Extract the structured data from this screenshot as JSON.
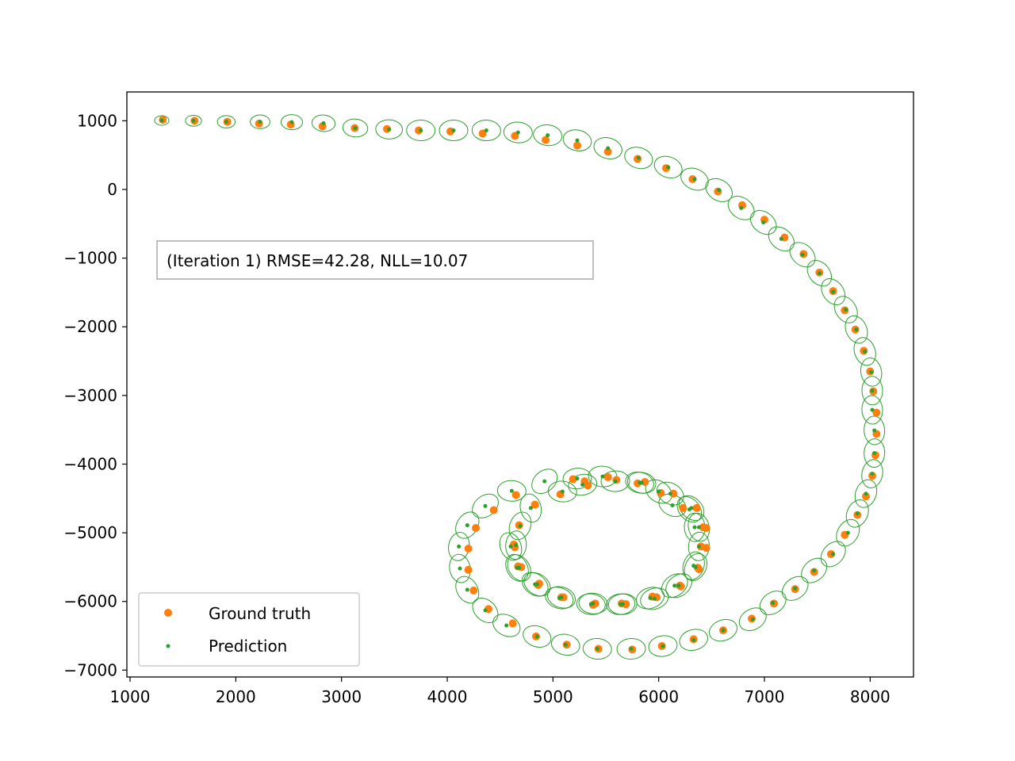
{
  "colors": {
    "ground_truth": "#ff7f0e",
    "prediction": "#2ca02c",
    "ellipse": "#2ca02c",
    "axes": "#000000",
    "legend_border": "#cccccc"
  },
  "chart_data": {
    "type": "scatter",
    "title": "",
    "xlabel": "",
    "ylabel": "",
    "xlim": [
      970,
      8410
    ],
    "ylim": [
      -7100,
      1420
    ],
    "x_ticks": [
      1000,
      2000,
      3000,
      4000,
      5000,
      6000,
      7000,
      8000
    ],
    "y_ticks": [
      1000,
      0,
      -1000,
      -2000,
      -3000,
      -4000,
      -5000,
      -6000,
      -7000
    ],
    "x_tick_labels": [
      "1000",
      "2000",
      "3000",
      "4000",
      "5000",
      "6000",
      "7000",
      "8000"
    ],
    "y_tick_labels": [
      "1000",
      "0",
      "−1000",
      "−2000",
      "−3000",
      "−4000",
      "−5000",
      "−6000",
      "−7000"
    ],
    "grid": false,
    "legend_position": "lower-left",
    "annotation": "(Iteration 1) RMSE=42.28, NLL=10.07",
    "series": [
      {
        "name": "Ground truth",
        "marker": "large-dot",
        "points": [
          [
            1310,
            1015
          ],
          [
            1610,
            1000
          ],
          [
            1920,
            985
          ],
          [
            2220,
            960
          ],
          [
            2520,
            945
          ],
          [
            2820,
            920
          ],
          [
            3125,
            895
          ],
          [
            3430,
            880
          ],
          [
            3730,
            860
          ],
          [
            4030,
            845
          ],
          [
            4335,
            815
          ],
          [
            4640,
            780
          ],
          [
            4930,
            720
          ],
          [
            5230,
            640
          ],
          [
            5520,
            550
          ],
          [
            5800,
            445
          ],
          [
            6070,
            310
          ],
          [
            6320,
            150
          ],
          [
            6560,
            -30
          ],
          [
            6790,
            -230
          ],
          [
            7000,
            -440
          ],
          [
            7190,
            -700
          ],
          [
            7370,
            -940
          ],
          [
            7520,
            -1210
          ],
          [
            7650,
            -1480
          ],
          [
            7760,
            -1760
          ],
          [
            7860,
            -2040
          ],
          [
            7940,
            -2350
          ],
          [
            8000,
            -2650
          ],
          [
            8030,
            -2940
          ],
          [
            8060,
            -3250
          ],
          [
            8060,
            -3560
          ],
          [
            8050,
            -3870
          ],
          [
            8020,
            -4170
          ],
          [
            7960,
            -4470
          ],
          [
            7880,
            -4740
          ],
          [
            7760,
            -5030
          ],
          [
            7630,
            -5310
          ],
          [
            7470,
            -5570
          ],
          [
            7290,
            -5820
          ],
          [
            7090,
            -6030
          ],
          [
            6880,
            -6250
          ],
          [
            6610,
            -6420
          ],
          [
            6330,
            -6550
          ],
          [
            6030,
            -6650
          ],
          [
            5750,
            -6700
          ],
          [
            5430,
            -6690
          ],
          [
            5130,
            -6630
          ],
          [
            4840,
            -6510
          ],
          [
            4620,
            -6320
          ],
          [
            4390,
            -6110
          ],
          [
            4250,
            -5840
          ],
          [
            4200,
            -5540
          ],
          [
            4200,
            -5230
          ],
          [
            4270,
            -4930
          ],
          [
            4440,
            -4670
          ],
          [
            4650,
            -4450
          ],
          [
            4830,
            -4590
          ],
          [
            4680,
            -4890
          ],
          [
            4630,
            -5170
          ],
          [
            4670,
            -5490
          ],
          [
            4870,
            -5740
          ],
          [
            5100,
            -5940
          ],
          [
            5400,
            -6030
          ],
          [
            5690,
            -6040
          ],
          [
            5980,
            -5940
          ],
          [
            6210,
            -5780
          ],
          [
            6380,
            -5530
          ],
          [
            6450,
            -5220
          ],
          [
            6450,
            -4930
          ],
          [
            6360,
            -4640
          ],
          [
            6140,
            -4430
          ],
          [
            5870,
            -4260
          ],
          [
            5600,
            -4230
          ],
          [
            5330,
            -4310
          ],
          [
            5070,
            -4440
          ],
          [
            5190,
            -4220
          ],
          [
            5300,
            -4250
          ],
          [
            5520,
            -4190
          ],
          [
            5800,
            -4280
          ],
          [
            6020,
            -4420
          ],
          [
            6230,
            -4640
          ],
          [
            6420,
            -4920
          ],
          [
            6400,
            -5200
          ],
          [
            6370,
            -5510
          ],
          [
            6200,
            -5770
          ],
          [
            5940,
            -5930
          ],
          [
            5650,
            -6030
          ],
          [
            5380,
            -6050
          ],
          [
            5080,
            -5940
          ],
          [
            4860,
            -5760
          ],
          [
            4700,
            -5500
          ],
          [
            4640,
            -5210
          ]
        ]
      },
      {
        "name": "Prediction",
        "marker": "small-dot-with-ellipse",
        "points": [
          [
            1300,
            1005
          ],
          [
            1600,
            1000
          ],
          [
            1910,
            985
          ],
          [
            2230,
            985
          ],
          [
            2530,
            980
          ],
          [
            2830,
            965
          ],
          [
            3130,
            895
          ],
          [
            3450,
            875
          ],
          [
            3750,
            860
          ],
          [
            4060,
            860
          ],
          [
            4370,
            860
          ],
          [
            4670,
            830
          ],
          [
            4950,
            790
          ],
          [
            5230,
            715
          ],
          [
            5520,
            600
          ],
          [
            5810,
            460
          ],
          [
            6090,
            325
          ],
          [
            6340,
            150
          ],
          [
            6570,
            -10
          ],
          [
            6780,
            -270
          ],
          [
            6990,
            -480
          ],
          [
            7160,
            -720
          ],
          [
            7360,
            -950
          ],
          [
            7520,
            -1220
          ],
          [
            7650,
            -1490
          ],
          [
            7770,
            -1750
          ],
          [
            7870,
            -2040
          ],
          [
            7950,
            -2360
          ],
          [
            8010,
            -2660
          ],
          [
            8020,
            -2930
          ],
          [
            8020,
            -3210
          ],
          [
            8040,
            -3510
          ],
          [
            8040,
            -3840
          ],
          [
            8020,
            -4140
          ],
          [
            7960,
            -4430
          ],
          [
            7880,
            -4720
          ],
          [
            7790,
            -5000
          ],
          [
            7650,
            -5310
          ],
          [
            7470,
            -5550
          ],
          [
            7290,
            -5810
          ],
          [
            7080,
            -6020
          ],
          [
            6890,
            -6260
          ],
          [
            6610,
            -6420
          ],
          [
            6330,
            -6560
          ],
          [
            6040,
            -6650
          ],
          [
            5740,
            -6690
          ],
          [
            5420,
            -6690
          ],
          [
            5120,
            -6630
          ],
          [
            4850,
            -6510
          ],
          [
            4560,
            -6350
          ],
          [
            4360,
            -6130
          ],
          [
            4190,
            -5830
          ],
          [
            4120,
            -5520
          ],
          [
            4110,
            -5200
          ],
          [
            4190,
            -4890
          ],
          [
            4360,
            -4610
          ],
          [
            4610,
            -4390
          ],
          [
            4790,
            -4640
          ],
          [
            4690,
            -4900
          ],
          [
            4650,
            -5180
          ],
          [
            4660,
            -5510
          ],
          [
            4850,
            -5750
          ],
          [
            5080,
            -5940
          ],
          [
            5380,
            -6030
          ],
          [
            5660,
            -6040
          ],
          [
            5960,
            -5960
          ],
          [
            6190,
            -5770
          ],
          [
            6350,
            -5500
          ],
          [
            6380,
            -5200
          ],
          [
            6380,
            -4920
          ],
          [
            6290,
            -4660
          ],
          [
            6110,
            -4430
          ],
          [
            5840,
            -4270
          ],
          [
            5590,
            -4250
          ],
          [
            5280,
            -4300
          ],
          [
            5090,
            -4400
          ],
          [
            4920,
            -4250
          ],
          [
            5230,
            -4210
          ],
          [
            5470,
            -4180
          ],
          [
            5820,
            -4270
          ],
          [
            6000,
            -4400
          ],
          [
            6130,
            -4600
          ],
          [
            6310,
            -4640
          ],
          [
            6340,
            -4920
          ],
          [
            6330,
            -5480
          ],
          [
            6150,
            -5770
          ],
          [
            5920,
            -5950
          ],
          [
            5640,
            -6040
          ],
          [
            5360,
            -6040
          ],
          [
            5060,
            -5950
          ],
          [
            4830,
            -5750
          ],
          [
            4680,
            -5510
          ],
          [
            4600,
            -5200
          ]
        ]
      }
    ]
  }
}
